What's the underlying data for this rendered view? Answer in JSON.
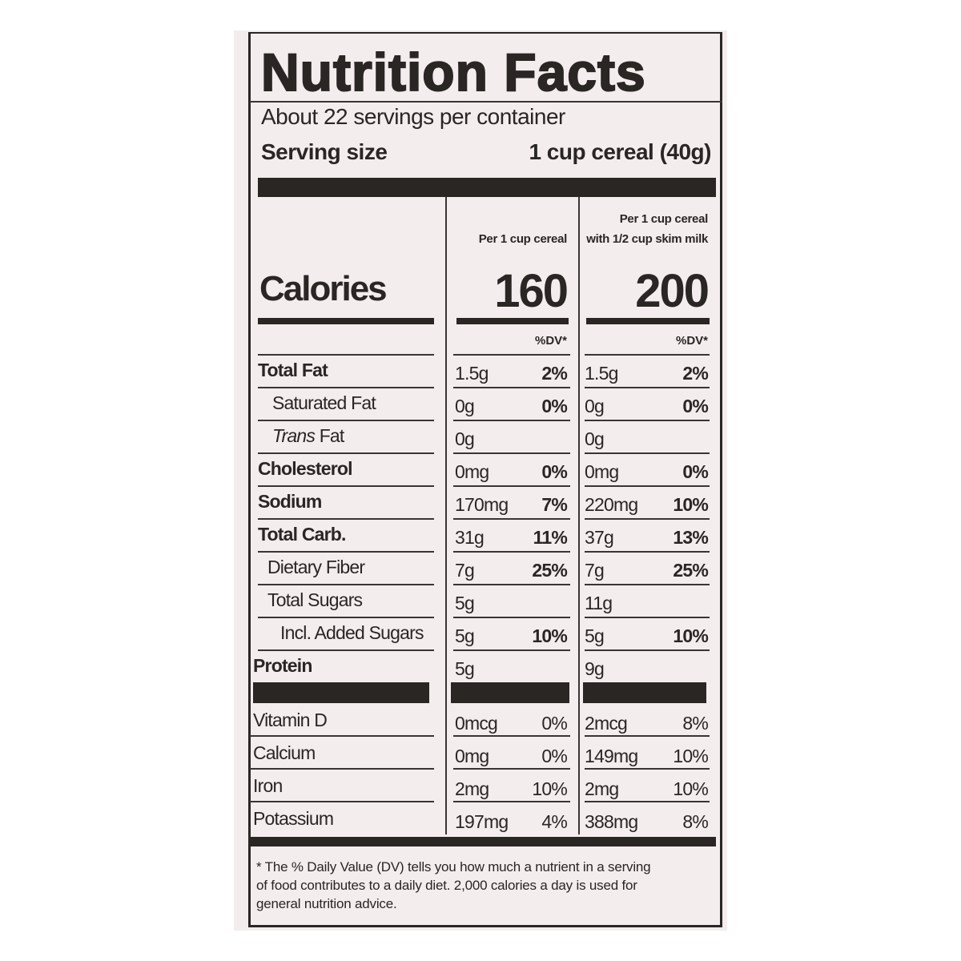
{
  "title": "Nutrition Facts",
  "servings": "About 22 servings per container",
  "serving_size": {
    "label": "Serving size",
    "value": "1 cup cereal (40g)"
  },
  "calories_label": "Calories",
  "columns": [
    {
      "header": [
        "Per 1 cup cereal"
      ],
      "calories": "160"
    },
    {
      "header": [
        "Per 1 cup cereal",
        "with 1/2 cup skim milk"
      ],
      "calories": "200"
    }
  ],
  "dv_header": "%DV*",
  "nutrients": [
    {
      "name": "Total Fat",
      "values": [
        [
          "1.5g",
          "2%"
        ],
        [
          "1.5g",
          "2%"
        ]
      ]
    },
    {
      "name": "Saturated Fat",
      "values": [
        [
          "0g",
          "0%"
        ],
        [
          "0g",
          "0%"
        ]
      ]
    },
    {
      "name": [
        "Trans",
        "Fat"
      ],
      "values": [
        [
          "0g",
          null
        ],
        [
          "0g",
          null
        ]
      ]
    },
    {
      "name": "Cholesterol",
      "values": [
        [
          "0mg",
          "0%"
        ],
        [
          "0mg",
          "0%"
        ]
      ]
    },
    {
      "name": "Sodium",
      "values": [
        [
          "170mg",
          "7%"
        ],
        [
          "220mg",
          "10%"
        ]
      ]
    },
    {
      "name": "Total Carb.",
      "values": [
        [
          "31g",
          "11%"
        ],
        [
          "37g",
          "13%"
        ]
      ]
    },
    {
      "name": "Dietary Fiber",
      "values": [
        [
          "7g",
          "25%"
        ],
        [
          "7g",
          "25%"
        ]
      ]
    },
    {
      "name": "Total Sugars",
      "values": [
        [
          "5g",
          null
        ],
        [
          "11g",
          null
        ]
      ]
    },
    {
      "name": "Incl. Added Sugars",
      "values": [
        [
          "5g",
          "10%"
        ],
        [
          "5g",
          "10%"
        ]
      ]
    },
    {
      "name": "Protein",
      "values": [
        [
          "5g",
          null
        ],
        [
          "9g",
          null
        ]
      ]
    }
  ],
  "vitamins": [
    {
      "name": "Vitamin D",
      "values": [
        [
          "0mcg",
          "0%"
        ],
        [
          "2mcg",
          "8%"
        ]
      ]
    },
    {
      "name": "Calcium",
      "values": [
        [
          "0mg",
          "0%"
        ],
        [
          "149mg",
          "10%"
        ]
      ]
    },
    {
      "name": "Iron",
      "values": [
        [
          "2mg",
          "10%"
        ],
        [
          "2mg",
          "10%"
        ]
      ]
    },
    {
      "name": "Potassium",
      "values": [
        [
          "197mg",
          "4%"
        ],
        [
          "388mg",
          "8%"
        ]
      ]
    }
  ],
  "footnote": [
    "* The % Daily Value (DV) tells you how much a nutrient in a serving",
    "of food contributes to a daily diet. 2,000 calories a day is used for",
    "general nutrition advice."
  ]
}
